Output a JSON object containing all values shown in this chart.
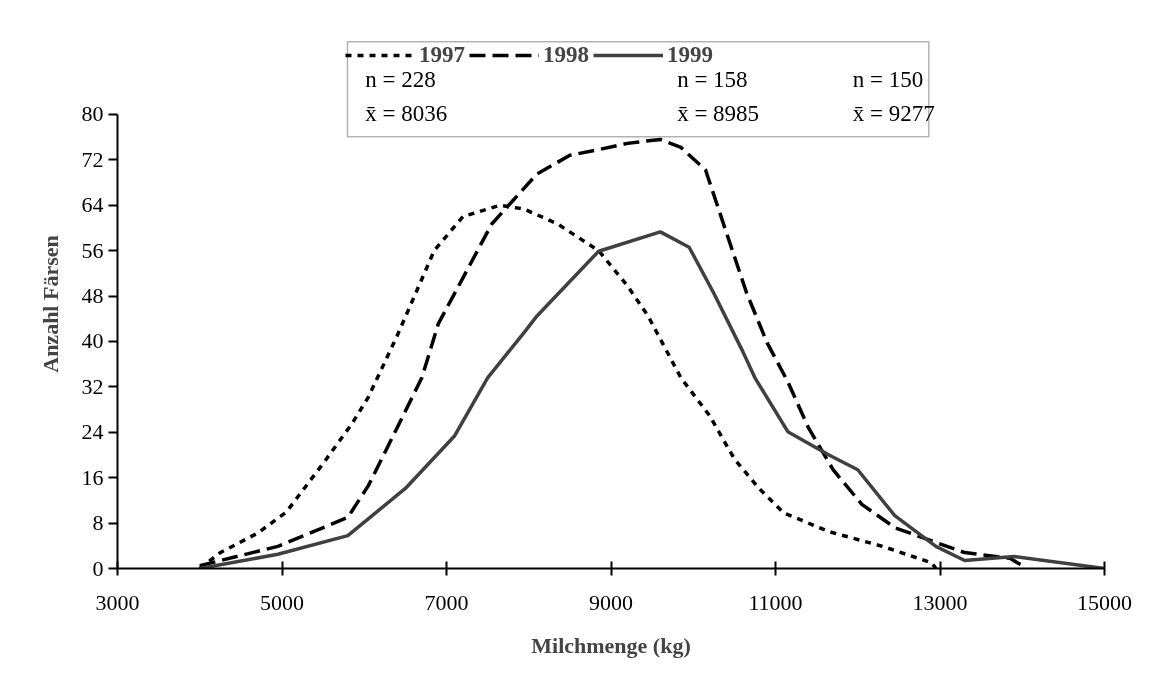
{
  "chart_data": {
    "type": "line",
    "xlabel": "Milchmenge (kg)",
    "ylabel": "Anzahl Färsen",
    "xlim": [
      3000,
      15000
    ],
    "xticks": [
      3000,
      5000,
      7000,
      9000,
      11000,
      13000,
      15000
    ],
    "ylim": [
      0,
      80
    ],
    "yticks": [
      0,
      8,
      16,
      24,
      32,
      40,
      48,
      56,
      64,
      72,
      80
    ],
    "grid": false,
    "legend": "top",
    "marker": "none",
    "series": [
      {
        "name": "1997",
        "color": "#000000",
        "line_style": "dotted",
        "x": [
          4000,
          4250,
          4700,
          5050,
          5500,
          5850,
          6050,
          6400,
          6550,
          6850,
          7200,
          7650,
          7950,
          8350,
          8850,
          9200,
          9450,
          9600,
          9850,
          10200,
          10500,
          10800,
          11100,
          11650,
          12300,
          12900,
          12950
        ],
        "values": [
          0,
          2.8,
          6.2,
          9.9,
          18.5,
          25.5,
          30.2,
          41,
          46,
          56,
          62,
          64,
          63.3,
          60.7,
          56,
          49.8,
          44.5,
          40.4,
          33.6,
          26.9,
          19.3,
          14.1,
          9.8,
          6.5,
          3.9,
          1,
          0
        ]
      },
      {
        "name": "1998",
        "color": "#000000",
        "line_style": "dashed",
        "x": [
          4000,
          4950,
          5800,
          6050,
          6400,
          6700,
          6900,
          7200,
          7550,
          7800,
          8100,
          8500,
          8850,
          9200,
          9600,
          9850,
          10150,
          10400,
          10650,
          10900,
          11150,
          11400,
          11700,
          12050,
          12450,
          12950,
          13300,
          13850,
          14000
        ],
        "values": [
          0.5,
          3.9,
          9,
          14.6,
          24.8,
          33.6,
          43.1,
          51.2,
          60.7,
          64.7,
          69.5,
          72.8,
          73.8,
          74.9,
          75.6,
          74.2,
          70.2,
          59.3,
          48.5,
          39.7,
          32.9,
          24.8,
          17.4,
          11.3,
          7.2,
          4.6,
          2.8,
          1.8,
          0.5
        ]
      },
      {
        "name": "1999",
        "color": "#404040",
        "line_style": "solid",
        "x": [
          4000,
          4950,
          5800,
          6500,
          7100,
          7500,
          7950,
          8100,
          8850,
          9600,
          9950,
          10250,
          10600,
          10750,
          11150,
          11650,
          12000,
          12450,
          12950,
          13300,
          13900,
          15000
        ],
        "values": [
          0,
          2.5,
          5.8,
          14.1,
          23.4,
          33.6,
          41.7,
          44.5,
          55.9,
          59.3,
          56.6,
          48.5,
          38.3,
          33.6,
          24.1,
          20,
          17.4,
          9.3,
          3.9,
          1.4,
          2.1,
          0
        ]
      }
    ],
    "annotations": [
      "n = 228",
      "n = 158",
      "n = 150",
      "x̄ = 8036",
      "x̄ = 8985",
      "x̄ = 9277"
    ]
  }
}
